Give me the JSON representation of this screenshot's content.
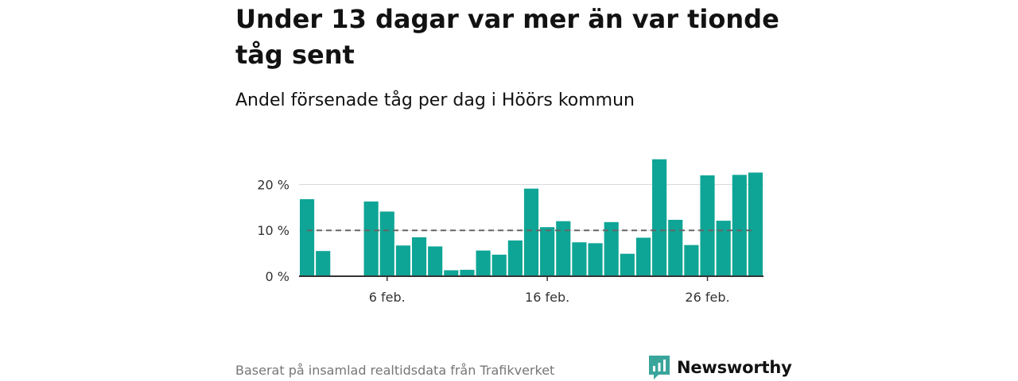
{
  "title": "Under 13 dagar var mer än var tionde tåg sent",
  "subtitle": "Andel försenade tåg per dag i Höörs kommun",
  "source": "Baserat på insamlad realtidsdata från Trafikverket",
  "brand": {
    "name": "Newsworthy",
    "icon": "newsworthy-logo-icon",
    "color": "#3aa59b"
  },
  "colors": {
    "bar": "#0ea596",
    "reference_line": "#666666",
    "grid": "#d9d9d9",
    "axis": "#333333"
  },
  "chart_data": {
    "type": "bar",
    "x": [
      "1 feb.",
      "2 feb.",
      "3 feb.",
      "4 feb.",
      "5 feb.",
      "6 feb.",
      "7 feb.",
      "8 feb.",
      "9 feb.",
      "10 feb.",
      "11 feb.",
      "12 feb.",
      "13 feb.",
      "14 feb.",
      "15 feb.",
      "16 feb.",
      "17 feb.",
      "18 feb.",
      "19 feb.",
      "20 feb.",
      "21 feb.",
      "22 feb.",
      "23 feb.",
      "24 feb.",
      "25 feb.",
      "26 feb.",
      "27 feb.",
      "28 feb.",
      "29 feb."
    ],
    "values": [
      16.8,
      5.5,
      null,
      null,
      16.3,
      14.1,
      6.7,
      8.5,
      6.5,
      1.3,
      1.4,
      5.6,
      4.7,
      7.8,
      19.1,
      10.7,
      12.0,
      7.4,
      7.2,
      11.8,
      4.9,
      8.4,
      25.5,
      12.3,
      6.8,
      22.0,
      12.1,
      22.1,
      22.6
    ],
    "xticks": [
      {
        "index": 5,
        "label": "6 feb."
      },
      {
        "index": 15,
        "label": "16 feb."
      },
      {
        "index": 25,
        "label": "26 feb."
      }
    ],
    "yticks": [
      {
        "value": 0,
        "label": "0 %"
      },
      {
        "value": 10,
        "label": "10 %"
      },
      {
        "value": 20,
        "label": "20 %"
      }
    ],
    "ylim": [
      0,
      27
    ],
    "reference_line": 10,
    "grid": true,
    "xlabel": "",
    "ylabel": ""
  }
}
